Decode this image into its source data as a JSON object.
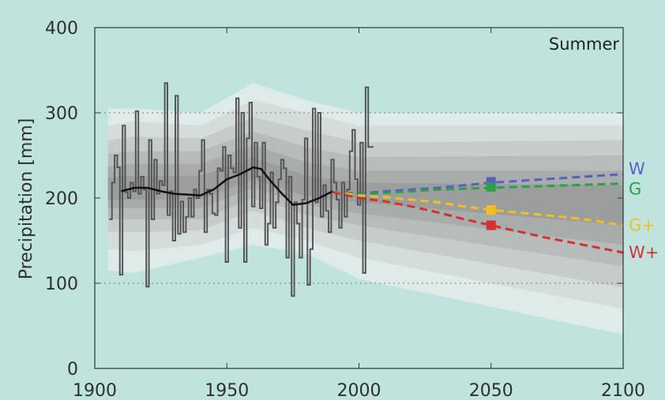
{
  "chart_data": {
    "type": "line",
    "season_label": "Summer",
    "ylabel": "Precipitation [mm]",
    "xlim": [
      1900,
      2100
    ],
    "ylim": [
      0,
      400
    ],
    "x_ticks": [
      1900,
      1950,
      2000,
      2050,
      2100
    ],
    "y_ticks": [
      0,
      100,
      200,
      300,
      400
    ],
    "grid": "dotted horizontal at 100 and 300",
    "colors": {
      "background": "#bfe4de",
      "observed": "#555555",
      "smooth": "#111111",
      "W": "#5a5ec4",
      "G": "#2aa04a",
      "G+": "#f0c020",
      "W+": "#d63030"
    },
    "uncertainty_band": {
      "levels": [
        {
          "x": [
            1905,
            1915,
            1940,
            1960,
            1980,
            2000,
            2100
          ],
          "lower": [
            115,
            112,
            130,
            145,
            135,
            105,
            40
          ],
          "upper": [
            305,
            305,
            300,
            335,
            315,
            300,
            300
          ]
        },
        {
          "x": [
            1905,
            1915,
            1940,
            1960,
            1980,
            2000,
            2100
          ],
          "lower": [
            140,
            138,
            145,
            165,
            150,
            130,
            70
          ],
          "upper": [
            285,
            290,
            285,
            315,
            300,
            285,
            285
          ]
        },
        {
          "x": [
            1905,
            1915,
            1940,
            1960,
            1980,
            2000,
            2100
          ],
          "lower": [
            160,
            160,
            162,
            185,
            165,
            150,
            95
          ],
          "upper": [
            268,
            272,
            270,
            295,
            280,
            265,
            268
          ]
        },
        {
          "x": [
            1905,
            1915,
            1940,
            1960,
            1980,
            2000,
            2100
          ],
          "lower": [
            175,
            175,
            175,
            200,
            180,
            168,
            120
          ],
          "upper": [
            252,
            255,
            255,
            278,
            260,
            248,
            250
          ]
        },
        {
          "x": [
            1905,
            1915,
            1940,
            1960,
            1980,
            2000,
            2100
          ],
          "lower": [
            188,
            188,
            188,
            212,
            192,
            182,
            145
          ],
          "upper": [
            237,
            240,
            240,
            262,
            242,
            232,
            232
          ]
        },
        {
          "x": [
            1905,
            1915,
            1940,
            1960,
            1980,
            2000,
            2100
          ],
          "lower": [
            198,
            198,
            198,
            222,
            202,
            195,
            168
          ],
          "upper": [
            224,
            226,
            226,
            248,
            226,
            218,
            215
          ]
        }
      ]
    },
    "observed": {
      "name": "",
      "x": [
        1906,
        1907,
        1908,
        1909,
        1910,
        1911,
        1912,
        1913,
        1914,
        1915,
        1916,
        1917,
        1918,
        1919,
        1920,
        1921,
        1922,
        1923,
        1924,
        1925,
        1926,
        1927,
        1928,
        1929,
        1930,
        1931,
        1932,
        1933,
        1934,
        1935,
        1936,
        1937,
        1938,
        1939,
        1940,
        1941,
        1942,
        1943,
        1944,
        1945,
        1946,
        1947,
        1948,
        1949,
        1950,
        1951,
        1952,
        1953,
        1954,
        1955,
        1956,
        1957,
        1958,
        1959,
        1960,
        1961,
        1962,
        1963,
        1964,
        1965,
        1966,
        1967,
        1968,
        1969,
        1970,
        1971,
        1972,
        1973,
        1974,
        1975,
        1976,
        1977,
        1978,
        1979,
        1980,
        1981,
        1982,
        1983,
        1984,
        1985,
        1986,
        1987,
        1988,
        1989,
        1990,
        1991,
        1992,
        1993,
        1994,
        1995,
        1996,
        1997,
        1998,
        1999,
        2000,
        2001,
        2002,
        2003,
        2004,
        2005
      ],
      "y": [
        175,
        218,
        250,
        236,
        110,
        285,
        207,
        200,
        218,
        208,
        302,
        205,
        225,
        210,
        96,
        268,
        175,
        245,
        205,
        220,
        215,
        335,
        180,
        208,
        150,
        320,
        158,
        196,
        160,
        178,
        200,
        178,
        210,
        200,
        232,
        268,
        160,
        210,
        205,
        182,
        180,
        235,
        232,
        260,
        125,
        250,
        235,
        230,
        317,
        165,
        300,
        125,
        270,
        312,
        190,
        265,
        225,
        188,
        265,
        145,
        170,
        230,
        165,
        195,
        222,
        245,
        235,
        130,
        225,
        85,
        195,
        170,
        130,
        198,
        270,
        98,
        140,
        305,
        195,
        300,
        178,
        215,
        185,
        160,
        245,
        218,
        198,
        165,
        218,
        178,
        210,
        255,
        280,
        222,
        192,
        265,
        112,
        330,
        260,
        260
      ]
    },
    "smoothed": {
      "name": "",
      "x": [
        1910,
        1915,
        1920,
        1925,
        1930,
        1935,
        1940,
        1945,
        1950,
        1955,
        1960,
        1963,
        1966,
        1970,
        1975,
        1980,
        1985,
        1990
      ],
      "y": [
        208,
        212,
        212,
        208,
        205,
        204,
        203,
        210,
        222,
        228,
        236,
        234,
        222,
        208,
        192,
        194,
        200,
        208
      ]
    },
    "scenarios": [
      {
        "name": "W",
        "x": [
          1990,
          2000,
          2010,
          2020,
          2030,
          2040,
          2050,
          2060,
          2070,
          2080,
          2090,
          2100
        ],
        "y": [
          207,
          205,
          208,
          210,
          212,
          215,
          218,
          220,
          222,
          224,
          226,
          228
        ],
        "marker_x": 2050,
        "marker_y": 219
      },
      {
        "name": "G",
        "x": [
          1990,
          2000,
          2010,
          2020,
          2030,
          2040,
          2050,
          2060,
          2070,
          2080,
          2090,
          2100
        ],
        "y": [
          207,
          204,
          206,
          208,
          210,
          211,
          212,
          213,
          214,
          215,
          216,
          217
        ],
        "marker_x": 2050,
        "marker_y": 213
      },
      {
        "name": "G+",
        "x": [
          1990,
          2000,
          2010,
          2020,
          2030,
          2040,
          2050,
          2060,
          2070,
          2080,
          2090,
          2100
        ],
        "y": [
          207,
          203,
          201,
          198,
          195,
          190,
          186,
          183,
          180,
          177,
          173,
          168
        ],
        "marker_x": 2050,
        "marker_y": 186
      },
      {
        "name": "W+",
        "x": [
          1990,
          2000,
          2010,
          2020,
          2030,
          2040,
          2050,
          2060,
          2070,
          2080,
          2090,
          2100
        ],
        "y": [
          207,
          200,
          196,
          190,
          183,
          175,
          168,
          161,
          154,
          148,
          142,
          136
        ],
        "marker_x": 2050,
        "marker_y": 168
      }
    ]
  }
}
